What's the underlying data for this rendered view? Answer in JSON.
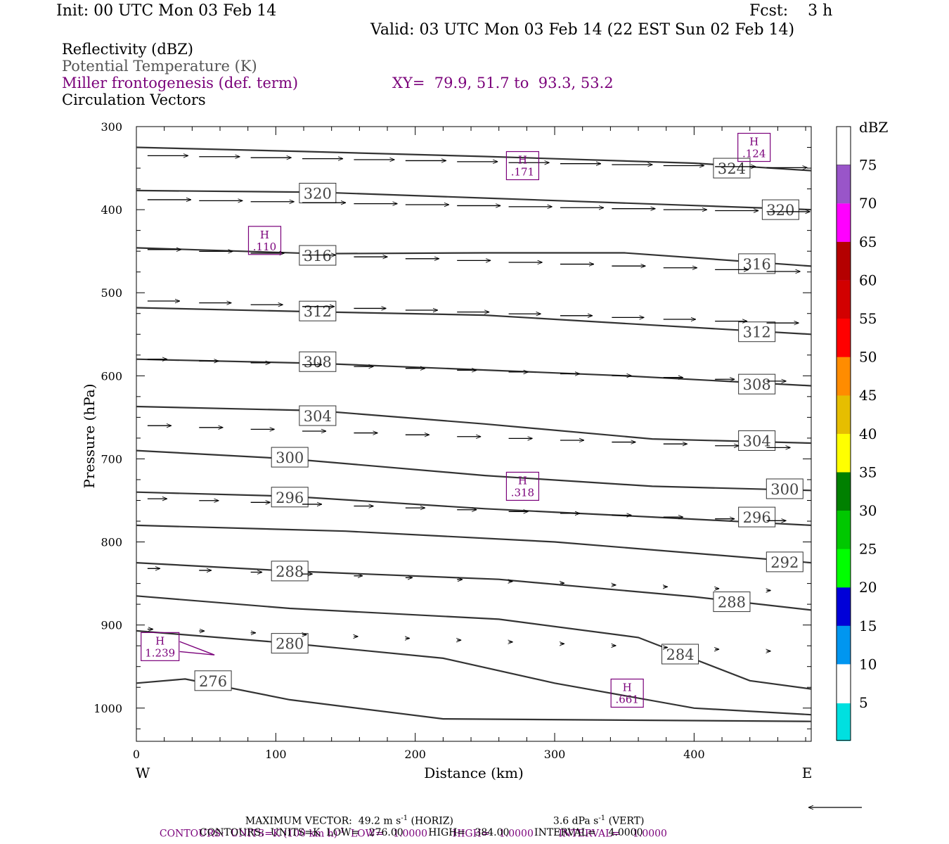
{
  "header": {
    "init": "Init: 00 UTC Mon 03 Feb 14",
    "fcst": "Fcst:    3 h",
    "valid": "Valid: 03 UTC Mon 03 Feb 14 (22 EST Sun 02 Feb 14)"
  },
  "legend": {
    "reflectivity": "Reflectivity (dBZ)",
    "theta": "Potential Temperature (K)",
    "miller": "Miller frontogenesis (def. term)",
    "xy": "XY=  79.9, 51.7 to  93.3, 53.2",
    "circulation": "Circulation Vectors"
  },
  "footer": {
    "max_vector_prefix": "MAXIMUM VECTOR:  49.2 m s",
    "max_vector_horiz": "(HORIZ)",
    "max_vector_vert_prefix": "3.6 dPa s",
    "max_vector_vert": "(VERT)",
    "exp": "-1",
    "contours1": "CONTOURS:  UNITS=K (100 km h)",
    "contours1_rest": "LOW=   1.0000        HIGH=   1.0000        INTERVAL=    1.0000",
    "contours2": "CONTOURS:  UNITS=K  LOW=   276.00        HIGH=   384.00        INTERVAL=    4.0000"
  },
  "colorbar": {
    "unit": "dBZ",
    "levels": [
      "5",
      "10",
      "15",
      "20",
      "25",
      "30",
      "35",
      "40",
      "45",
      "50",
      "55",
      "60",
      "65",
      "70",
      "75"
    ],
    "colors": [
      "#00e0e0",
      "#0096f0",
      "#0000d8",
      "#00ff00",
      "#00c800",
      "#008000",
      "#ffff00",
      "#e6be00",
      "#ff8c00",
      "#ff0000",
      "#d20000",
      "#b40000",
      "#ff00ff",
      "#9955c9",
      "#ffffff"
    ]
  },
  "chart_data": {
    "type": "line",
    "title": "",
    "xlabel": "Distance (km)",
    "ylabel": "Pressure (hPa)",
    "xlim": [
      0,
      484
    ],
    "ylim": [
      1040,
      300
    ],
    "x_ticks": [
      "0",
      "100",
      "200",
      "300",
      "400"
    ],
    "y_ticks": [
      "300",
      "400",
      "500",
      "600",
      "700",
      "800",
      "900",
      "1000"
    ],
    "x_end_labels": [
      "W",
      "E"
    ],
    "theta_contours": [
      {
        "label": "324",
        "p_at_x": [
          [
            0,
            325
          ],
          [
            120,
            330
          ],
          [
            250,
            336
          ],
          [
            400,
            344
          ],
          [
            484,
            353
          ]
        ],
        "labels_at": [
          [
            427,
            350
          ]
        ]
      },
      {
        "label": "320",
        "p_at_x": [
          [
            0,
            377
          ],
          [
            130,
            379
          ],
          [
            250,
            386
          ],
          [
            400,
            395
          ],
          [
            484,
            400
          ]
        ],
        "labels_at": [
          [
            130,
            380
          ],
          [
            462,
            400
          ]
        ]
      },
      {
        "label": "316",
        "p_at_x": [
          [
            0,
            446
          ],
          [
            130,
            453
          ],
          [
            250,
            452
          ],
          [
            350,
            452
          ],
          [
            484,
            468
          ]
        ],
        "labels_at": [
          [
            130,
            455
          ],
          [
            445,
            465
          ]
        ]
      },
      {
        "label": "312",
        "p_at_x": [
          [
            0,
            518
          ],
          [
            130,
            523
          ],
          [
            250,
            527
          ],
          [
            350,
            537
          ],
          [
            484,
            550
          ]
        ],
        "labels_at": [
          [
            130,
            522
          ],
          [
            445,
            547
          ]
        ]
      },
      {
        "label": "308",
        "p_at_x": [
          [
            0,
            580
          ],
          [
            130,
            585
          ],
          [
            250,
            593
          ],
          [
            350,
            600
          ],
          [
            484,
            612
          ]
        ],
        "labels_at": [
          [
            130,
            583
          ],
          [
            445,
            610
          ]
        ]
      },
      {
        "label": "304",
        "p_at_x": [
          [
            0,
            637
          ],
          [
            130,
            642
          ],
          [
            250,
            658
          ],
          [
            370,
            676
          ],
          [
            484,
            681
          ]
        ],
        "labels_at": [
          [
            130,
            648
          ],
          [
            445,
            678
          ]
        ]
      },
      {
        "label": "300",
        "p_at_x": [
          [
            0,
            690
          ],
          [
            110,
            700
          ],
          [
            250,
            720
          ],
          [
            370,
            733
          ],
          [
            484,
            738
          ]
        ],
        "labels_at": [
          [
            110,
            698
          ],
          [
            465,
            736
          ]
        ]
      },
      {
        "label": "296",
        "p_at_x": [
          [
            0,
            740
          ],
          [
            110,
            745
          ],
          [
            250,
            760
          ],
          [
            370,
            770
          ],
          [
            484,
            780
          ]
        ],
        "labels_at": [
          [
            110,
            746
          ],
          [
            445,
            770
          ]
        ]
      },
      {
        "label": "292",
        "p_at_x": [
          [
            0,
            780
          ],
          [
            150,
            787
          ],
          [
            300,
            800
          ],
          [
            484,
            825
          ]
        ],
        "labels_at": [
          [
            465,
            824
          ]
        ]
      },
      {
        "label": "288",
        "p_at_x": [
          [
            0,
            825
          ],
          [
            110,
            835
          ],
          [
            260,
            845
          ],
          [
            400,
            866
          ],
          [
            484,
            882
          ]
        ],
        "labels_at": [
          [
            110,
            835
          ],
          [
            427,
            872
          ]
        ]
      },
      {
        "label": "284",
        "p_at_x": [
          [
            0,
            865
          ],
          [
            110,
            880
          ],
          [
            260,
            893
          ],
          [
            360,
            915
          ],
          [
            440,
            967
          ],
          [
            484,
            977
          ]
        ],
        "labels_at": [
          [
            390,
            935
          ]
        ]
      },
      {
        "label": "280",
        "p_at_x": [
          [
            0,
            907
          ],
          [
            110,
            922
          ],
          [
            220,
            940
          ],
          [
            300,
            970
          ],
          [
            400,
            1000
          ],
          [
            484,
            1008
          ]
        ],
        "labels_at": [
          [
            110,
            922
          ]
        ]
      },
      {
        "label": "276",
        "p_at_x": [
          [
            0,
            970
          ],
          [
            35,
            965
          ],
          [
            110,
            990
          ],
          [
            220,
            1013
          ],
          [
            484,
            1016
          ]
        ],
        "labels_at": [
          [
            55,
            967
          ]
        ]
      }
    ],
    "frontogenesis_maxima": [
      {
        "label": "H",
        "value": ".124",
        "x": 443,
        "p": 325
      },
      {
        "label": "H",
        "value": ".171",
        "x": 277,
        "p": 347
      },
      {
        "label": "H",
        "value": ".110",
        "x": 92,
        "p": 437
      },
      {
        "label": "H",
        "value": ".318",
        "x": 277,
        "p": 733
      },
      {
        "label": "H",
        "value": "1.239",
        "x": 17,
        "p": 926
      },
      {
        "label": "H",
        "value": ".661",
        "x": 352,
        "p": 982
      }
    ]
  }
}
